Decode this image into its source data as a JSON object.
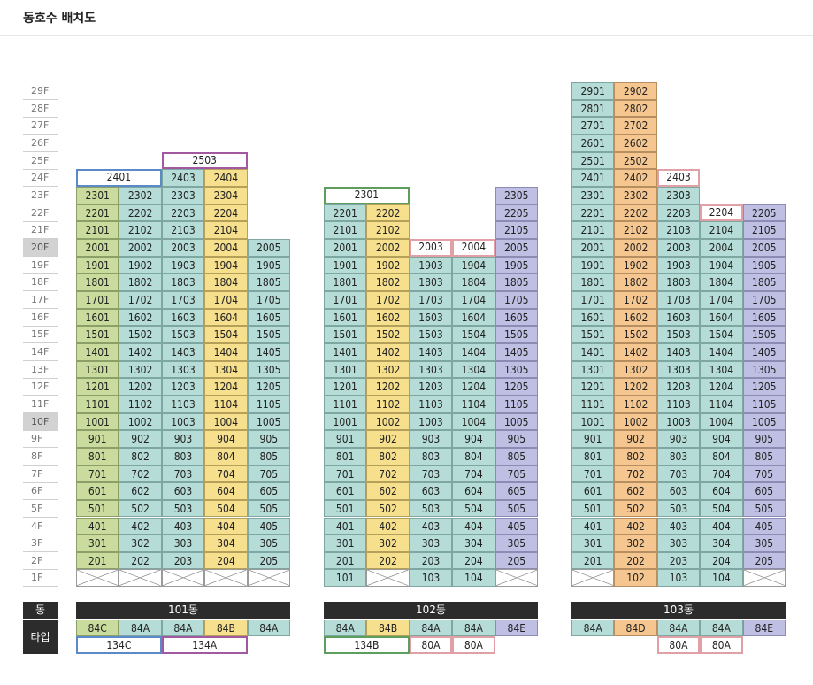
{
  "title": "동호수 배치도",
  "floors": [
    "29F",
    "28F",
    "27F",
    "26F",
    "25F",
    "24F",
    "23F",
    "22F",
    "21F",
    "20F",
    "19F",
    "18F",
    "17F",
    "16F",
    "15F",
    "14F",
    "13F",
    "12F",
    "11F",
    "10F",
    "9F",
    "8F",
    "7F",
    "6F",
    "5F",
    "4F",
    "3F",
    "2F",
    "1F"
  ],
  "highlight_floors": [
    "20F",
    "10F"
  ],
  "labels": {
    "dong": "동",
    "type": "타입"
  },
  "colors": {
    "green": "#c9dc9d",
    "yellow": "#f6df8d",
    "teal": "#b5dcd6",
    "purple": "#bfbfe3",
    "orange": "#f5c690",
    "box_blue": "#5b8ac8",
    "box_magenta": "#a15aa0",
    "box_green": "#5d9e5e",
    "box_pink": "#e0a0a6",
    "bar": "#2c2c2c"
  },
  "buildings": [
    {
      "name": "101동",
      "columns": [
        {
          "color": "green",
          "type": "84C",
          "top": 23,
          "pilotis1F": true
        },
        {
          "color": "teal",
          "type": "84A",
          "top": 23,
          "pilotis1F": true
        },
        {
          "color": "teal",
          "type": "84A",
          "top": 24,
          "pilotis1F": true
        },
        {
          "color": "yellow",
          "type": "84B",
          "top": 24,
          "pilotis1F": true
        },
        {
          "color": "teal",
          "type": "84A",
          "top": 20,
          "pilotis1F": true
        }
      ],
      "special": [
        {
          "label": "2401",
          "floor": 24,
          "span": [
            0,
            1
          ],
          "box": "blue"
        },
        {
          "label": "2503",
          "floor": 25,
          "span": [
            2,
            3
          ],
          "box": "magenta"
        }
      ],
      "type_bottom": [
        {
          "label": "134C",
          "span": [
            0,
            1
          ],
          "box": "blue"
        },
        {
          "label": "134A",
          "span": [
            2,
            3
          ],
          "box": "magenta"
        }
      ]
    },
    {
      "name": "102동",
      "columns": [
        {
          "color": "teal",
          "type": "84A",
          "top": 22,
          "pilotis1F": false
        },
        {
          "color": "yellow",
          "type": "84B",
          "top": 22,
          "pilotis1F": true
        },
        {
          "color": "teal",
          "type": "84A",
          "top": 19,
          "pilotis1F": false
        },
        {
          "color": "teal",
          "type": "84A",
          "top": 19,
          "pilotis1F": false
        },
        {
          "color": "purple",
          "type": "84E",
          "top": 23,
          "pilotis1F": true
        }
      ],
      "special": [
        {
          "label": "2301",
          "floor": 23,
          "span": [
            0,
            1
          ],
          "box": "green"
        },
        {
          "label": "2003",
          "floor": 20,
          "span": [
            2,
            2
          ],
          "box": "pink"
        },
        {
          "label": "2004",
          "floor": 20,
          "span": [
            3,
            3
          ],
          "box": "pink"
        }
      ],
      "type_bottom": [
        {
          "label": "134B",
          "span": [
            0,
            1
          ],
          "box": "green"
        },
        {
          "label": "80A",
          "span": [
            2,
            2
          ],
          "box": "pink"
        },
        {
          "label": "80A",
          "span": [
            3,
            3
          ],
          "box": "pink"
        }
      ]
    },
    {
      "name": "103동",
      "columns": [
        {
          "color": "teal",
          "type": "84A",
          "top": 29,
          "pilotis1F": true
        },
        {
          "color": "orange",
          "type": "84D",
          "top": 29,
          "pilotis1F": false
        },
        {
          "color": "teal",
          "type": "84A",
          "top": 23,
          "pilotis1F": false
        },
        {
          "color": "teal",
          "type": "84A",
          "top": 21,
          "pilotis1F": false
        },
        {
          "color": "purple",
          "type": "84E",
          "top": 22,
          "pilotis1F": true
        }
      ],
      "special": [
        {
          "label": "2403",
          "floor": 24,
          "span": [
            2,
            2
          ],
          "box": "pink"
        },
        {
          "label": "2204",
          "floor": 22,
          "span": [
            3,
            3
          ],
          "box": "pink"
        }
      ],
      "type_bottom": [
        {
          "label": "80A",
          "span": [
            2,
            2
          ],
          "box": "pink"
        },
        {
          "label": "80A",
          "span": [
            3,
            3
          ],
          "box": "pink"
        }
      ]
    }
  ]
}
